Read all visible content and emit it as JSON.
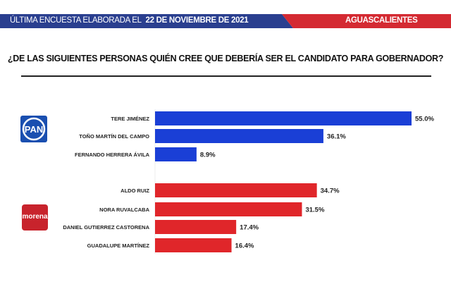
{
  "header": {
    "prefix": "ÚLTIMA ENCUESTA ELABORADA EL",
    "date": "22 DE NOVIEMBRE DE 2021",
    "region": "AGUASCALIENTES",
    "colors": {
      "blue": "#2a3f8f",
      "red": "#d42a32"
    }
  },
  "question": "¿DE LAS SIGUIENTES PERSONAS QUIÉN CREE QUE DEBERÍA SER EL CANDIDATO PARA GOBERNADOR?",
  "logos": {
    "pan": "PAN",
    "morena": "morena"
  },
  "chart_data": {
    "type": "bar",
    "orientation": "horizontal",
    "groups": [
      {
        "party": "PAN",
        "color": "#1a3fd6",
        "categories": [
          "TERE JIMÉNEZ",
          "TOÑO MARTÍN DEL CAMPO",
          "FERNANDO HERRERA ÁVILA"
        ],
        "values": [
          55.0,
          36.1,
          8.9
        ],
        "labels": [
          "55.0%",
          "36.1%",
          "8.9%"
        ]
      },
      {
        "party": "morena",
        "color": "#e0262a",
        "categories": [
          "ALDO RUIZ",
          "NORA RUVALCABA",
          "DANIEL GUTIERREZ CASTORENA",
          "GUADALUPE MARTÍNEZ"
        ],
        "values": [
          34.7,
          31.5,
          17.4,
          16.4
        ],
        "labels": [
          "34.7%",
          "31.5%",
          "17.4%",
          "16.4%"
        ]
      }
    ]
  }
}
